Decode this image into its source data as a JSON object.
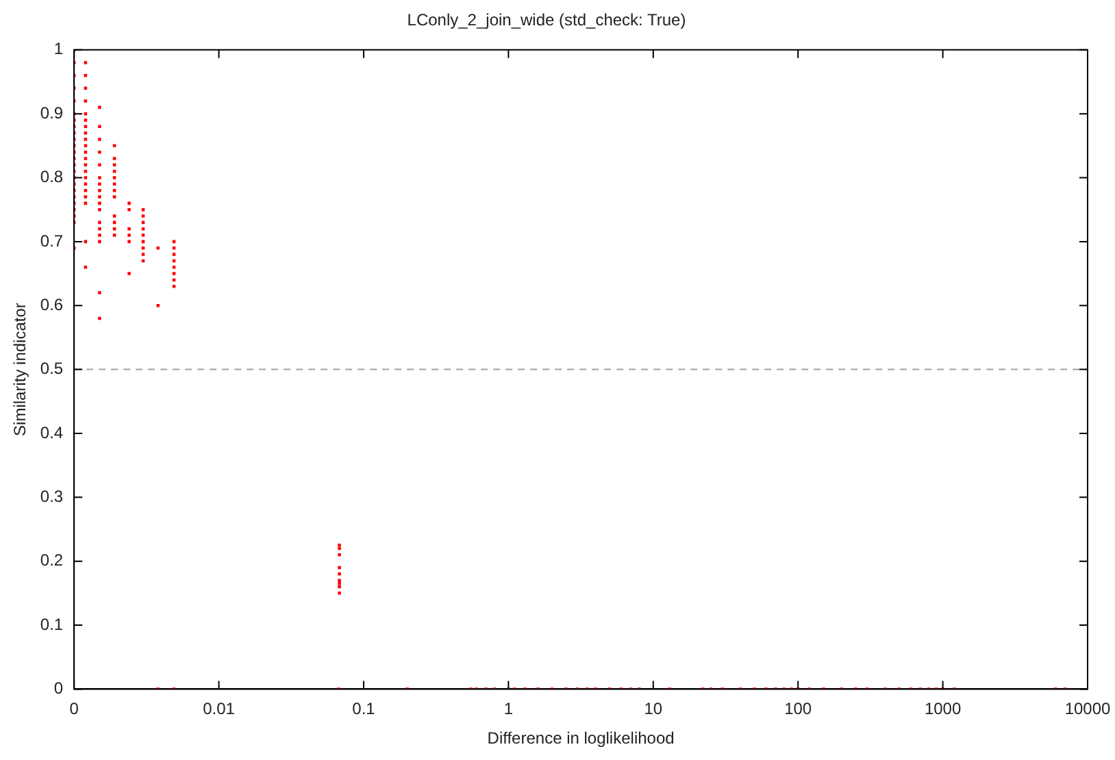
{
  "chart_data": {
    "type": "scatter",
    "title": "LConly_2_join_wide (std_check: True)",
    "xlabel": "Difference in loglikelihood",
    "ylabel": "Similarity indicator",
    "log": "x",
    "xlim": [
      0.001,
      10000
    ],
    "xticks": [
      {
        "value": 0.001,
        "label": "0"
      },
      0.01,
      0.1,
      1,
      10,
      100,
      1000,
      10000
    ],
    "ylim": [
      0,
      1
    ],
    "yticks": [
      0,
      0.1,
      0.2,
      0.3,
      0.4,
      0.5,
      0.6,
      0.7,
      0.8,
      0.9,
      1
    ],
    "grid": false,
    "legend": false,
    "marker": "square",
    "ref_lines": [
      {
        "axis": "y",
        "value": 0.5,
        "color": "#a0a0a0",
        "line_style": "dashed"
      }
    ],
    "series": [
      {
        "color": "#ff0000",
        "x": [
          0.001,
          0.001,
          0.001,
          0.001,
          0.001,
          0.001,
          0.001,
          0.001,
          0.001,
          0.001,
          0.001,
          0.001,
          0.001,
          0.001,
          0.001,
          0.001,
          0.001,
          0.001,
          0.001,
          0.001,
          0.001,
          0.001,
          0.001,
          0.001,
          0.0012,
          0.0012,
          0.0012,
          0.0012,
          0.0012,
          0.0012,
          0.0012,
          0.0012,
          0.0012,
          0.0012,
          0.0012,
          0.0012,
          0.0012,
          0.0012,
          0.0012,
          0.0012,
          0.0012,
          0.0012,
          0.0012,
          0.0012,
          0.0012,
          0.0015,
          0.0015,
          0.0015,
          0.0015,
          0.0015,
          0.0015,
          0.0015,
          0.0015,
          0.0015,
          0.0015,
          0.0015,
          0.0015,
          0.0015,
          0.0015,
          0.0015,
          0.0015,
          0.0015,
          0.0019,
          0.0019,
          0.0019,
          0.0019,
          0.0019,
          0.0019,
          0.0019,
          0.0019,
          0.0019,
          0.0019,
          0.0019,
          0.0019,
          0.0024,
          0.0024,
          0.0024,
          0.0024,
          0.0024,
          0.0024,
          0.003,
          0.003,
          0.003,
          0.003,
          0.003,
          0.003,
          0.003,
          0.003,
          0.003,
          0.0038,
          0.0038,
          0.0049,
          0.0049,
          0.0049,
          0.0049,
          0.0049,
          0.0049,
          0.0049,
          0.0049,
          0.068,
          0.068,
          0.068,
          0.068,
          0.068,
          0.068,
          0.068,
          0.068,
          0.068,
          0.0038,
          0.0049,
          0.067,
          0.2,
          0.55,
          0.6,
          0.7,
          0.8,
          1,
          1.1,
          1.3,
          1.6,
          2,
          2.5,
          3,
          3.5,
          4,
          5,
          6,
          7,
          8,
          13,
          22,
          25,
          30,
          40,
          50,
          60,
          70,
          80,
          90,
          100,
          120,
          150,
          200,
          250,
          300,
          400,
          500,
          600,
          700,
          800,
          900,
          1000,
          1200,
          6000,
          7000
        ],
        "values": [
          0.69,
          0.73,
          0.74,
          0.75,
          0.76,
          0.77,
          0.78,
          0.79,
          0.8,
          0.81,
          0.82,
          0.83,
          0.84,
          0.85,
          0.86,
          0.87,
          0.88,
          0.89,
          0.9,
          0.92,
          0.94,
          0.96,
          0.98,
          1,
          0.66,
          0.7,
          0.76,
          0.77,
          0.78,
          0.79,
          0.8,
          0.81,
          0.82,
          0.83,
          0.84,
          0.85,
          0.86,
          0.87,
          0.88,
          0.89,
          0.9,
          0.92,
          0.94,
          0.96,
          0.98,
          0.58,
          0.62,
          0.7,
          0.71,
          0.72,
          0.73,
          0.75,
          0.76,
          0.77,
          0.79,
          0.8,
          0.82,
          0.84,
          0.86,
          0.88,
          0.91,
          0.78,
          0.71,
          0.72,
          0.73,
          0.74,
          0.77,
          0.78,
          0.79,
          0.8,
          0.81,
          0.82,
          0.83,
          0.85,
          0.65,
          0.7,
          0.71,
          0.72,
          0.75,
          0.76,
          0.67,
          0.68,
          0.69,
          0.7,
          0.71,
          0.72,
          0.73,
          0.74,
          0.75,
          0.6,
          0.69,
          0.63,
          0.64,
          0.65,
          0.66,
          0.67,
          0.68,
          0.69,
          0.7,
          0.15,
          0.16,
          0.17,
          0.18,
          0.19,
          0.21,
          0.22,
          0.225,
          0.165,
          0,
          0,
          0,
          0,
          0,
          0,
          0,
          0,
          0,
          0,
          0,
          0,
          0,
          0,
          0,
          0,
          0,
          0,
          0,
          0,
          0,
          0,
          0,
          0,
          0,
          0,
          0,
          0,
          0,
          0,
          0,
          0,
          0,
          0,
          0,
          0,
          0,
          0,
          0,
          0,
          0,
          0,
          0,
          0,
          0,
          0,
          0
        ]
      }
    ]
  }
}
